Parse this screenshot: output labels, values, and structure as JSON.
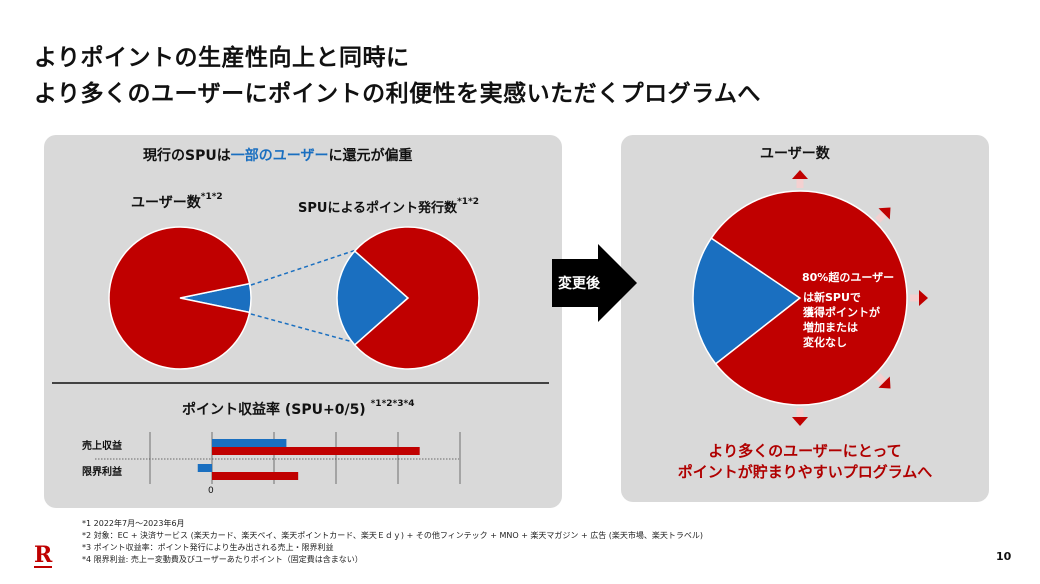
{
  "title": {
    "line1": "よりポイントの生産性向上と同時に",
    "line2": "より多くのユーザーにポイントの利便性を実感いただくプログラムへ"
  },
  "left_panel": {
    "heading_pre": "現行のSPUは",
    "heading_highlight": "一部のユーザー",
    "heading_post": "に還元が偏重",
    "pie1_label": "ユーザー数",
    "pie1_sup": "*1*2",
    "pie2_label": "SPUによるポイント発行数",
    "pie2_sup": "*1*2",
    "bar_title": "ポイント収益率 (SPU+0/5)",
    "bar_sup": "*1*2*3*4"
  },
  "arrow_label": "変更後",
  "right_panel": {
    "heading": "ユーザー数",
    "pie_text_line1": "80%超のユーザー",
    "pie_text_rest": [
      "は新SPUで",
      "獲得ポイントが",
      "増加または",
      "変化なし"
    ],
    "conclusion_line1": "より多くのユーザーにとって",
    "conclusion_line2": "ポイントが貯まりやすいプログラムへ"
  },
  "footnotes": [
    "*1  2022年7月～2023年6月",
    "*2  対象：EC + 決済サービス (楽天カード、楽天ペイ、楽天ポイントカード、楽天Ｅｄｙ) + その他フィンテック + MNO + 楽天マガジン + 広告 (楽天市場、楽天トラベル)",
    "*3  ポイント収益率：ポイント発行により生み出される売上・限界利益",
    "*4  限界利益: 売上ー変動費及びユーザーあたりポイント（固定費は含まない）"
  ],
  "page_number": "10",
  "logo_text": "R",
  "colors": {
    "red": "#c00000",
    "blue": "#1a6fc0",
    "panel": "#d9d9d9"
  },
  "chart_data": [
    {
      "type": "pie",
      "title": "ユーザー数",
      "slices": [
        {
          "color": "#1a6fc0",
          "share": 6.5
        },
        {
          "color": "#c00000",
          "share": 93.5
        }
      ]
    },
    {
      "type": "pie",
      "title": "SPUによるポイント発行数",
      "slices": [
        {
          "color": "#1a6fc0",
          "share": 23
        },
        {
          "color": "#c00000",
          "share": 77
        }
      ]
    },
    {
      "type": "bar",
      "orientation": "horizontal",
      "title": "ポイント収益率 (SPU+0/5)",
      "categories": [
        "売上収益",
        "限界利益"
      ],
      "series": [
        {
          "color": "#1a6fc0",
          "values": [
            1.2,
            -0.23
          ]
        },
        {
          "color": "#c00000",
          "values": [
            3.35,
            1.39
          ]
        }
      ],
      "xlim": [
        -1,
        4
      ],
      "tick_labels": [
        "0"
      ],
      "grid": true
    },
    {
      "type": "pie",
      "title": "ユーザー数",
      "slices": [
        {
          "color": "#1a6fc0",
          "share": 20
        },
        {
          "color": "#c00000",
          "share": 80
        }
      ]
    }
  ]
}
